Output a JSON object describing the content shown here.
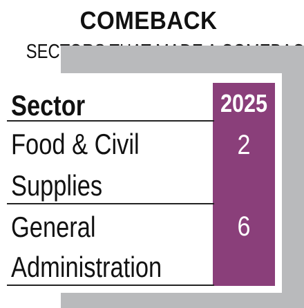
{
  "header": {
    "title": "COMEBACK",
    "subtitle": "SECTORS THAT MADE A COMEBACK"
  },
  "table": {
    "columns": [
      "Sector",
      "2025"
    ],
    "rows": [
      {
        "sector_line1": "Food & Civil",
        "sector_line2": "Supplies",
        "value": "2"
      },
      {
        "sector_line1": "General",
        "sector_line2": "Administration",
        "value": "6"
      }
    ]
  },
  "colors": {
    "accent": "#8a3f7a",
    "shadow": "#b9babc"
  }
}
